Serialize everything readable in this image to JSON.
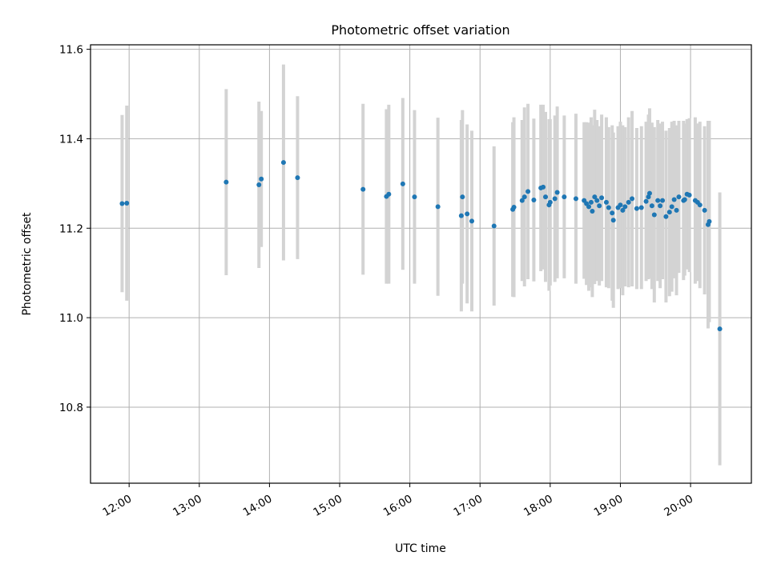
{
  "chart_data": {
    "type": "scatter",
    "title": "Photometric offset variation",
    "xlabel": "UTC time",
    "ylabel": "Photometric offset",
    "grid": true,
    "colors": {
      "point": "#1f77b4",
      "errorbar": "#d3d3d3",
      "grid": "#b0b0b0"
    },
    "xlim": [
      "11:27",
      "20:52"
    ],
    "ylim": [
      10.63,
      11.61
    ],
    "xticks": [
      "12:00",
      "13:00",
      "14:00",
      "15:00",
      "16:00",
      "17:00",
      "18:00",
      "19:00",
      "20:00"
    ],
    "yticks": [
      "10.8",
      "11.0",
      "11.2",
      "11.4",
      "11.6"
    ],
    "ytick_values": [
      10.8,
      11.0,
      11.2,
      11.4,
      11.6
    ],
    "points": [
      {
        "t": "11:54",
        "y": 11.255,
        "err": 0.198
      },
      {
        "t": "11:58",
        "y": 11.256,
        "err": 0.218
      },
      {
        "t": "13:23",
        "y": 11.303,
        "err": 0.208
      },
      {
        "t": "13:51",
        "y": 11.297,
        "err": 0.186
      },
      {
        "t": "13:53",
        "y": 11.31,
        "err": 0.152
      },
      {
        "t": "14:12",
        "y": 11.347,
        "err": 0.219
      },
      {
        "t": "14:24",
        "y": 11.313,
        "err": 0.182
      },
      {
        "t": "15:20",
        "y": 11.287,
        "err": 0.191
      },
      {
        "t": "15:40",
        "y": 11.271,
        "err": 0.195
      },
      {
        "t": "15:42",
        "y": 11.276,
        "err": 0.2
      },
      {
        "t": "15:54",
        "y": 11.299,
        "err": 0.192
      },
      {
        "t": "16:04",
        "y": 11.27,
        "err": 0.194
      },
      {
        "t": "16:24",
        "y": 11.248,
        "err": 0.199
      },
      {
        "t": "16:44",
        "y": 11.228,
        "err": 0.214
      },
      {
        "t": "16:45",
        "y": 11.27,
        "err": 0.194
      },
      {
        "t": "16:49",
        "y": 11.232,
        "err": 0.2
      },
      {
        "t": "16:53",
        "y": 11.216,
        "err": 0.202
      },
      {
        "t": "17:12",
        "y": 11.205,
        "err": 0.178
      },
      {
        "t": "17:28",
        "y": 11.242,
        "err": 0.195
      },
      {
        "t": "17:29",
        "y": 11.247,
        "err": 0.201
      },
      {
        "t": "17:36",
        "y": 11.262,
        "err": 0.18
      },
      {
        "t": "17:38",
        "y": 11.27,
        "err": 0.2
      },
      {
        "t": "17:41",
        "y": 11.282,
        "err": 0.196
      },
      {
        "t": "17:46",
        "y": 11.263,
        "err": 0.182
      },
      {
        "t": "17:52",
        "y": 11.29,
        "err": 0.186
      },
      {
        "t": "17:54",
        "y": 11.292,
        "err": 0.184
      },
      {
        "t": "17:56",
        "y": 11.27,
        "err": 0.19
      },
      {
        "t": "17:59",
        "y": 11.252,
        "err": 0.192
      },
      {
        "t": "18:00",
        "y": 11.258,
        "err": 0.186
      },
      {
        "t": "18:04",
        "y": 11.266,
        "err": 0.186
      },
      {
        "t": "18:06",
        "y": 11.28,
        "err": 0.192
      },
      {
        "t": "18:12",
        "y": 11.27,
        "err": 0.182
      },
      {
        "t": "18:22",
        "y": 11.266,
        "err": 0.19
      },
      {
        "t": "18:29",
        "y": 11.262,
        "err": 0.175
      },
      {
        "t": "18:31",
        "y": 11.255,
        "err": 0.182
      },
      {
        "t": "18:33",
        "y": 11.248,
        "err": 0.188
      },
      {
        "t": "18:35",
        "y": 11.258,
        "err": 0.19
      },
      {
        "t": "18:36",
        "y": 11.238,
        "err": 0.192
      },
      {
        "t": "18:38",
        "y": 11.27,
        "err": 0.195
      },
      {
        "t": "18:40",
        "y": 11.262,
        "err": 0.18
      },
      {
        "t": "18:42",
        "y": 11.25,
        "err": 0.178
      },
      {
        "t": "18:44",
        "y": 11.268,
        "err": 0.186
      },
      {
        "t": "18:48",
        "y": 11.258,
        "err": 0.19
      },
      {
        "t": "18:50",
        "y": 11.246,
        "err": 0.18
      },
      {
        "t": "18:53",
        "y": 11.234,
        "err": 0.196
      },
      {
        "t": "18:54",
        "y": 11.218,
        "err": 0.196
      },
      {
        "t": "18:58",
        "y": 11.246,
        "err": 0.182
      },
      {
        "t": "19:00",
        "y": 11.252,
        "err": 0.186
      },
      {
        "t": "19:02",
        "y": 11.24,
        "err": 0.19
      },
      {
        "t": "19:04",
        "y": 11.248,
        "err": 0.178
      },
      {
        "t": "19:07",
        "y": 11.258,
        "err": 0.19
      },
      {
        "t": "19:10",
        "y": 11.266,
        "err": 0.196
      },
      {
        "t": "19:14",
        "y": 11.244,
        "err": 0.18
      },
      {
        "t": "19:18",
        "y": 11.246,
        "err": 0.182
      },
      {
        "t": "19:22",
        "y": 11.26,
        "err": 0.178
      },
      {
        "t": "19:24",
        "y": 11.27,
        "err": 0.184
      },
      {
        "t": "19:25",
        "y": 11.278,
        "err": 0.19
      },
      {
        "t": "19:27",
        "y": 11.25,
        "err": 0.186
      },
      {
        "t": "19:29",
        "y": 11.23,
        "err": 0.196
      },
      {
        "t": "19:32",
        "y": 11.262,
        "err": 0.18
      },
      {
        "t": "19:34",
        "y": 11.25,
        "err": 0.184
      },
      {
        "t": "19:36",
        "y": 11.262,
        "err": 0.176
      },
      {
        "t": "19:39",
        "y": 11.226,
        "err": 0.192
      },
      {
        "t": "19:42",
        "y": 11.236,
        "err": 0.188
      },
      {
        "t": "19:44",
        "y": 11.248,
        "err": 0.19
      },
      {
        "t": "19:46",
        "y": 11.264,
        "err": 0.176
      },
      {
        "t": "19:48",
        "y": 11.24,
        "err": 0.19
      },
      {
        "t": "19:50",
        "y": 11.27,
        "err": 0.17
      },
      {
        "t": "19:54",
        "y": 11.262,
        "err": 0.178
      },
      {
        "t": "19:55",
        "y": 11.264,
        "err": 0.17
      },
      {
        "t": "19:57",
        "y": 11.276,
        "err": 0.168
      },
      {
        "t": "19:59",
        "y": 11.274,
        "err": 0.172
      },
      {
        "t": "20:04",
        "y": 11.262,
        "err": 0.186
      },
      {
        "t": "20:06",
        "y": 11.258,
        "err": 0.176
      },
      {
        "t": "20:08",
        "y": 11.252,
        "err": 0.186
      },
      {
        "t": "20:12",
        "y": 11.24,
        "err": 0.188
      },
      {
        "t": "20:15",
        "y": 11.208,
        "err": 0.232
      },
      {
        "t": "20:16",
        "y": 11.215,
        "err": 0.225
      },
      {
        "t": "20:25",
        "y": 10.975,
        "err": 0.305
      }
    ]
  }
}
